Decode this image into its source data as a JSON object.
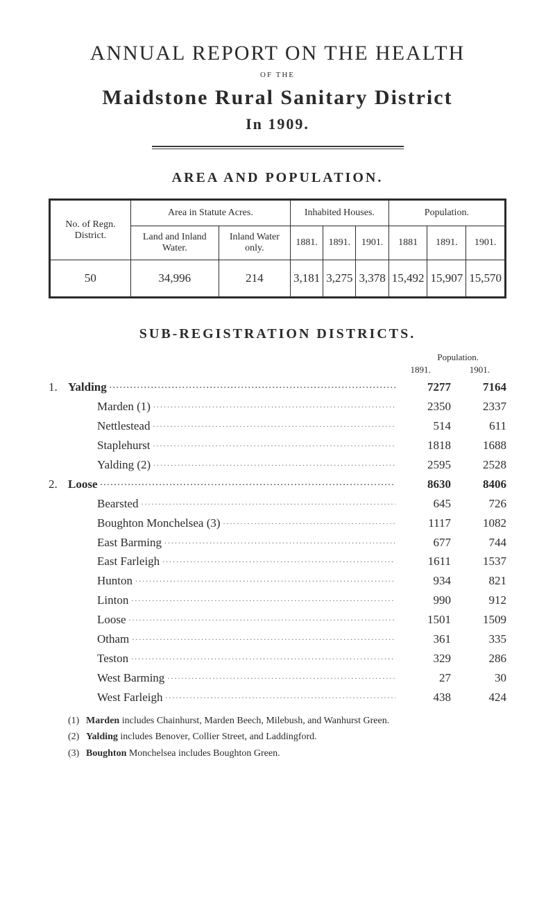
{
  "title": {
    "main": "ANNUAL REPORT ON THE HEALTH",
    "of_the": "OF THE",
    "district": "Maidstone Rural Sanitary District",
    "year": "In 1909."
  },
  "area_pop": {
    "heading": "AREA AND POPULATION.",
    "group_headers": [
      "Area in Statute Acres.",
      "Inhabited Houses.",
      "Population."
    ],
    "col_headers": {
      "no_of": "No. of Regn. District.",
      "land_inland_water": "Land and Inland Water.",
      "inland_water_only": "Inland Water only.",
      "h1881": "1881.",
      "h1891": "1891.",
      "h1901": "1901.",
      "p1881": "1881",
      "p1891": "1891.",
      "p1901": "1901."
    },
    "row": {
      "no": "50",
      "land": "34,996",
      "water": "214",
      "h1881": "3,181",
      "h1891": "3,275",
      "h1901": "3,378",
      "p1881": "15,492",
      "p1891": "15,907",
      "p1901": "15,570"
    }
  },
  "subreg": {
    "heading": "SUB-REGISTRATION DISTRICTS.",
    "pop_label": "Population.",
    "year1": "1891.",
    "year2": "1901.",
    "sections": [
      {
        "num": "1.",
        "name": "Yalding",
        "v1": "7277",
        "v2": "7164",
        "items": [
          {
            "name": "Marden (1)",
            "v1": "2350",
            "v2": "2337"
          },
          {
            "name": "Nettlestead",
            "v1": "514",
            "v2": "611"
          },
          {
            "name": "Staplehurst",
            "v1": "1818",
            "v2": "1688"
          },
          {
            "name": "Yalding (2)",
            "v1": "2595",
            "v2": "2528"
          }
        ]
      },
      {
        "num": "2.",
        "name": "Loose",
        "v1": "8630",
        "v2": "8406",
        "items": [
          {
            "name": "Bearsted",
            "v1": "645",
            "v2": "726"
          },
          {
            "name": "Boughton Monchelsea (3)",
            "v1": "1117",
            "v2": "1082"
          },
          {
            "name": "East Barming",
            "v1": "677",
            "v2": "744"
          },
          {
            "name": "East Farleigh",
            "v1": "1611",
            "v2": "1537"
          },
          {
            "name": "Hunton",
            "v1": "934",
            "v2": "821"
          },
          {
            "name": "Linton",
            "v1": "990",
            "v2": "912"
          },
          {
            "name": "Loose",
            "v1": "1501",
            "v2": "1509"
          },
          {
            "name": "Otham",
            "v1": "361",
            "v2": "335"
          },
          {
            "name": "Teston",
            "v1": "329",
            "v2": "286"
          },
          {
            "name": "West Barming",
            "v1": "27",
            "v2": "30"
          },
          {
            "name": "West Farleigh",
            "v1": "438",
            "v2": "424"
          }
        ]
      }
    ],
    "footnotes": [
      {
        "n": "(1)",
        "text": "Marden includes Chainhurst, Marden Beech, Milebush, and Wanhurst Green."
      },
      {
        "n": "(2)",
        "text": "Yalding includes Benover, Collier Street, and Laddingford."
      },
      {
        "n": "(3)",
        "text": "Boughton Monchelsea includes Boughton Green."
      }
    ]
  },
  "style": {
    "background_color": "#ffffff",
    "text_color": "#2a2a2a",
    "rule_color": "#3a3a3a",
    "dot_color": "#6a6a6a"
  }
}
